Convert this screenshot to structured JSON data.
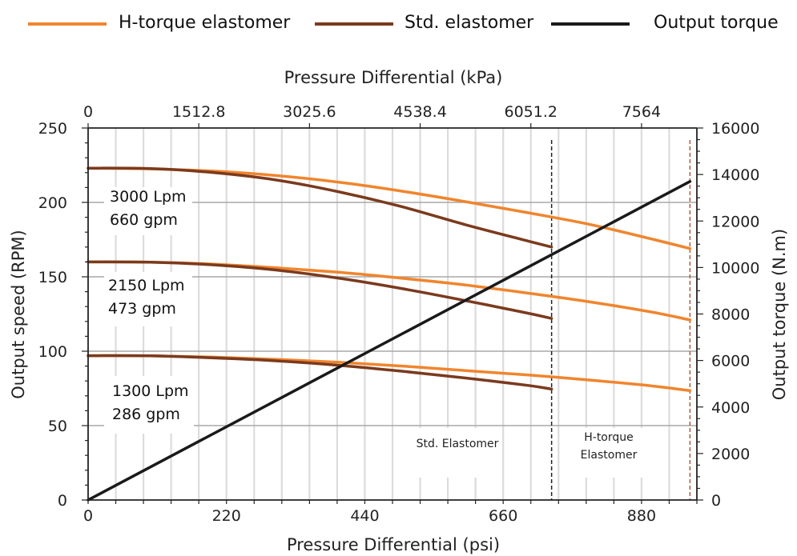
{
  "chart_data": {
    "type": "line",
    "legend": [
      {
        "name": "H-torque elastomer",
        "color": "#f0852d"
      },
      {
        "name": "Std. elastomer",
        "color": "#7b3a1d"
      },
      {
        "name": "Output torque",
        "color": "#1a1a1a"
      }
    ],
    "legend_position": "top",
    "xlabel": "Pressure Differential (psi)",
    "x2label": "Pressure Differential (kPa)",
    "ylabel": "Output speed (RPM)",
    "y2label": "Output torque (N.m)",
    "xlim": [
      0,
      968
    ],
    "ylim": [
      0,
      250
    ],
    "y2lim": [
      0,
      16000
    ],
    "xticks": [
      0,
      220,
      440,
      660,
      880
    ],
    "x2ticks": [
      "0",
      "1512.8",
      "3025.6",
      "4538.4",
      "6051.2",
      "7564"
    ],
    "yticks": [
      0,
      50,
      100,
      150,
      200,
      250
    ],
    "y2ticks": [
      0,
      2000,
      4000,
      6000,
      8000,
      10000,
      12000,
      14000,
      16000
    ],
    "grid": "vertical lines every 44 psi; horizontal lines at 50, 100, 150, 200 RPM",
    "limit_lines": [
      {
        "x": 737,
        "label": "Std. Elastomer",
        "color": "#222222"
      },
      {
        "x": 957,
        "label_lines": [
          "H-torque",
          "Elastomer"
        ],
        "color": "#b05a3a"
      }
    ],
    "flow_labels": [
      {
        "lines": [
          "3000 Lpm",
          "660 gpm"
        ]
      },
      {
        "lines": [
          "2150 Lpm",
          "473 gpm"
        ]
      },
      {
        "lines": [
          "1300 Lpm",
          "286 gpm"
        ]
      }
    ],
    "series": [
      {
        "name": "H-torque elastomer",
        "group": "3000 Lpm",
        "x": [
          0,
          100,
          200,
          300,
          400,
          500,
          600,
          700,
          800,
          900,
          957
        ],
        "y": [
          223,
          222.5,
          221,
          218,
          213.5,
          207.5,
          200.5,
          193,
          185,
          175,
          169
        ]
      },
      {
        "name": "Std. elastomer",
        "group": "3000 Lpm",
        "x": [
          0,
          100,
          200,
          300,
          400,
          500,
          600,
          700,
          737
        ],
        "y": [
          223,
          222.7,
          220,
          215,
          207,
          197,
          185,
          174,
          170
        ]
      },
      {
        "name": "H-torque elastomer",
        "group": "2150 Lpm",
        "x": [
          0,
          100,
          200,
          300,
          400,
          500,
          600,
          700,
          800,
          900,
          957
        ],
        "y": [
          160,
          159.8,
          158.5,
          156,
          153,
          149,
          144.5,
          139,
          133,
          126,
          121
        ]
      },
      {
        "name": "Std. elastomer",
        "group": "2150 Lpm",
        "x": [
          0,
          100,
          200,
          300,
          400,
          500,
          600,
          700,
          737
        ],
        "y": [
          160,
          159.8,
          158,
          154.5,
          149,
          142,
          134,
          125.5,
          122
        ]
      },
      {
        "name": "H-torque elastomer",
        "group": "1300 Lpm",
        "x": [
          0,
          100,
          200,
          300,
          400,
          500,
          600,
          700,
          800,
          900,
          957
        ],
        "y": [
          97,
          96.9,
          96,
          94.5,
          92.5,
          90,
          87,
          84,
          80.5,
          76.5,
          73.5
        ]
      },
      {
        "name": "Std. elastomer",
        "group": "1300 Lpm",
        "x": [
          0,
          100,
          200,
          300,
          400,
          500,
          600,
          700,
          737
        ],
        "y": [
          97,
          96.9,
          95.5,
          93.5,
          90.5,
          86.5,
          82,
          77,
          74.5
        ]
      },
      {
        "name": "Output torque",
        "axis": "right",
        "x": [
          0,
          957
        ],
        "y": [
          0,
          13700
        ]
      }
    ]
  }
}
